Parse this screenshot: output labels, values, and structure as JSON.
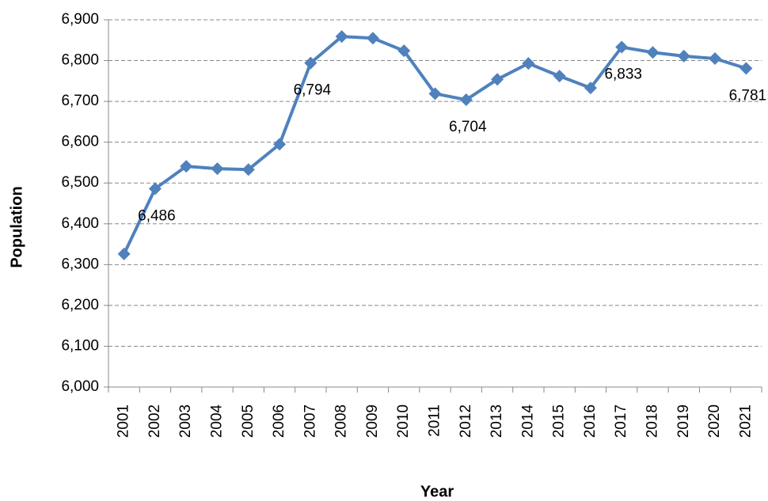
{
  "chart_data": {
    "type": "line",
    "x_label": "Year",
    "y_label": "Population",
    "categories": [
      "2001",
      "2002",
      "2003",
      "2004",
      "2005",
      "2006",
      "2007",
      "2008",
      "2009",
      "2010",
      "2011",
      "2012",
      "2013",
      "2014",
      "2015",
      "2016",
      "2017",
      "2018",
      "2019",
      "2020",
      "2021"
    ],
    "series": [
      {
        "color": "#4f81bd",
        "values": [
          6326,
          6486,
          6541,
          6535,
          6533,
          6595,
          6794,
          6859,
          6855,
          6824,
          6719,
          6704,
          6754,
          6793,
          6762,
          6733,
          6833,
          6820,
          6811,
          6805,
          6781
        ],
        "value_labels": [
          null,
          "6,486",
          null,
          null,
          null,
          null,
          "6,794",
          null,
          null,
          null,
          null,
          "6,704",
          null,
          null,
          null,
          null,
          "6,833",
          null,
          null,
          null,
          "6,781"
        ]
      }
    ],
    "ylim": [
      6000,
      6900
    ],
    "yticks": [
      {
        "value": 6000,
        "label": "6,000"
      },
      {
        "value": 6100,
        "label": "6,100"
      },
      {
        "value": 6200,
        "label": "6,200"
      },
      {
        "value": 6300,
        "label": "6,300"
      },
      {
        "value": 6400,
        "label": "6,400"
      },
      {
        "value": 6500,
        "label": "6,500"
      },
      {
        "value": 6600,
        "label": "6,600"
      },
      {
        "value": 6700,
        "label": "6,700"
      },
      {
        "value": 6800,
        "label": "6,800"
      },
      {
        "value": 6900,
        "label": "6,900"
      }
    ],
    "grid": true
  }
}
